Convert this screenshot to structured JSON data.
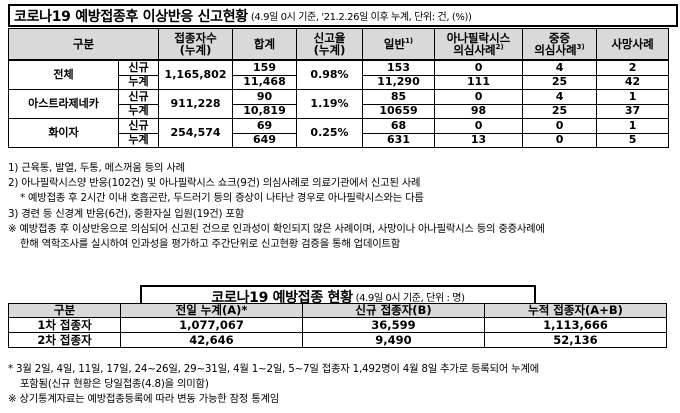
{
  "section1": {
    "title": "코로나19 예방접종후 이상반응 신고현황",
    "subtitle": "(4.9일 0시 기준, '21.2.26일 이후 누계, 단위: 건, (%))",
    "headers": {
      "category": "구분",
      "vaccinated": "접종자수\n(누계)",
      "total": "합계",
      "rate": "신고율\n(누계)",
      "general": "일반",
      "general_sup": "1)",
      "anaphylaxis": "아나필락시스\n의심사례",
      "anaphylaxis_sup": "2)",
      "severe": "중증\n의심사례",
      "severe_sup": "3)",
      "death": "사망사례"
    },
    "rows": [
      {
        "name": "전체",
        "vaccinated": "1,165,802",
        "rate": "0.98%",
        "new": {
          "label": "신규",
          "total": "159",
          "general": "153",
          "anaphylaxis": "0",
          "severe": "4",
          "death": "2"
        },
        "cumul": {
          "label": "누계",
          "total": "11,468",
          "general": "11,290",
          "anaphylaxis": "111",
          "severe": "25",
          "death": "42"
        }
      },
      {
        "name": "아스트라제네카",
        "vaccinated": "911,228",
        "rate": "1.19%",
        "new": {
          "label": "신규",
          "total": "90",
          "general": "85",
          "anaphylaxis": "0",
          "severe": "4",
          "death": "1"
        },
        "cumul": {
          "label": "누계",
          "total": "10,819",
          "general": "10659",
          "anaphylaxis": "98",
          "severe": "25",
          "death": "37"
        }
      },
      {
        "name": "화이자",
        "vaccinated": "254,574",
        "rate": "0.25%",
        "new": {
          "label": "신규",
          "total": "69",
          "general": "68",
          "anaphylaxis": "0",
          "severe": "0",
          "death": "1"
        },
        "cumul": {
          "label": "누계",
          "total": "649",
          "general": "631",
          "anaphylaxis": "13",
          "severe": "0",
          "death": "5"
        }
      }
    ],
    "notes": [
      "1) 근육통, 발열, 두통, 메스꺼움 등의 사례",
      "2) 아나필락시스양 반응(102건) 및 아나필락시스 쇼크(9건) 의심사례로 의료기관에서 신고된 사례",
      "* 예방접종 후 2시간 이내 호흡곤란, 두드러기 등의 증상이 나타난 경우로 아나필락시스와는 다름",
      "3) 경련 등 신경계 반응(6건), 중환자실 입원(19건) 포함",
      "※ 예방접종 후 이상반응으로 의심되어 신고된 건으로 인과성이 확인되지 않은 사례이며, 사망이나 아나필락시스 등의 중증사례에",
      "한해 역학조사를 실시하여 인과성을 평가하고 주간단위로 신고현황 검증을 통해 업데이트함"
    ]
  },
  "section2": {
    "title": "코로나19 예방접종 현황",
    "subtitle": "(4.9일 0시 기준, 단위 : 명)",
    "headers": [
      "구분",
      "전일 누계(A)*",
      "신규 접종자(B)",
      "누적 접종자(A+B)"
    ],
    "rows": [
      {
        "label": "1차 접종자",
        "prev": "1,077,067",
        "new": "36,599",
        "cumul": "1,113,666"
      },
      {
        "label": "2차 접종자",
        "prev": "42,646",
        "new": "9,490",
        "cumul": "52,136"
      }
    ],
    "notes": [
      "* 3월 2일, 4일, 11일, 17일, 24~26일, 29~31일, 4월 1~2일, 5~7일 접종자 1,492명이 4월 8일 추가로 등록되어 누계에",
      "포함됨(신규 현황은 당일접종(4.8)을 의미함)",
      "※ 상기통계자료는 예방접종등록에 따라 변동 가능한 잠정 통계임"
    ]
  }
}
